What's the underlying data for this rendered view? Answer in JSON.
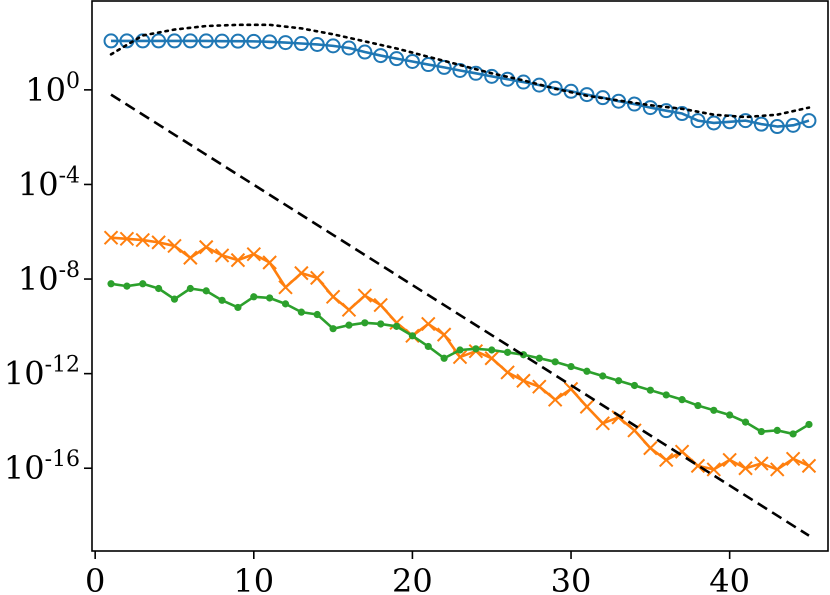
{
  "chart_data": {
    "type": "line",
    "title": "",
    "xlabel": "",
    "ylabel": "",
    "yscale": "log",
    "xlim": [
      -0.2,
      46.2
    ],
    "ylim_exponent": [
      -19.5,
      3.8
    ],
    "grid": false,
    "x_ticks": [
      0,
      10,
      20,
      30,
      40
    ],
    "y_ticks": [
      {
        "base": "10",
        "exp": "0",
        "value_exp": 0
      },
      {
        "base": "10",
        "exp": "-4",
        "value_exp": -4
      },
      {
        "base": "10",
        "exp": "-8",
        "value_exp": -8
      },
      {
        "base": "10",
        "exp": "-12",
        "value_exp": -12
      },
      {
        "base": "10",
        "exp": "-16",
        "value_exp": -16
      }
    ],
    "colors": {
      "blue": "#1f77b4",
      "orange": "#ff7f0e",
      "green": "#2ca02c",
      "black": "#000000"
    },
    "series": [
      {
        "color": "#1f77b4",
        "marker": "circle-open",
        "line": "solid",
        "x": [
          1,
          2,
          3,
          4,
          5,
          6,
          7,
          8,
          9,
          10,
          11,
          12,
          13,
          14,
          15,
          16,
          17,
          18,
          19,
          20,
          21,
          22,
          23,
          24,
          25,
          26,
          27,
          28,
          29,
          30,
          31,
          32,
          33,
          34,
          35,
          36,
          37,
          38,
          39,
          40,
          41,
          42,
          43,
          44,
          45
        ],
        "log10_y": [
          2.07,
          2.07,
          2.07,
          2.07,
          2.07,
          2.07,
          2.07,
          2.06,
          2.06,
          2.05,
          2.03,
          2.0,
          1.96,
          1.92,
          1.86,
          1.77,
          1.6,
          1.45,
          1.32,
          1.2,
          1.07,
          0.95,
          0.82,
          0.7,
          0.57,
          0.45,
          0.33,
          0.2,
          0.07,
          -0.06,
          -0.2,
          -0.33,
          -0.48,
          -0.6,
          -0.75,
          -0.88,
          -1.0,
          -1.3,
          -1.4,
          -1.35,
          -1.3,
          -1.45,
          -1.55,
          -1.5,
          -1.3
        ]
      },
      {
        "color": "#ff7f0e",
        "marker": "x",
        "line": "solid",
        "x": [
          1,
          2,
          3,
          4,
          5,
          6,
          7,
          8,
          9,
          10,
          11,
          12,
          13,
          14,
          15,
          16,
          17,
          18,
          19,
          20,
          21,
          22,
          23,
          24,
          25,
          26,
          27,
          28,
          29,
          30,
          31,
          32,
          33,
          34,
          35,
          36,
          37,
          38,
          39,
          40,
          41,
          42,
          43,
          44,
          45
        ],
        "log10_y": [
          -6.25,
          -6.3,
          -6.35,
          -6.45,
          -6.6,
          -7.1,
          -6.65,
          -7.0,
          -7.2,
          -6.95,
          -7.3,
          -8.35,
          -7.75,
          -7.95,
          -8.75,
          -9.3,
          -8.7,
          -9.1,
          -9.85,
          -10.4,
          -9.9,
          -10.35,
          -11.3,
          -11.05,
          -11.35,
          -11.95,
          -12.3,
          -12.55,
          -13.1,
          -12.65,
          -13.4,
          -14.1,
          -13.85,
          -14.4,
          -15.15,
          -15.65,
          -15.3,
          -15.9,
          -16.05,
          -15.65,
          -16.0,
          -15.8,
          -16.05,
          -15.6,
          -15.9
        ]
      },
      {
        "color": "#2ca02c",
        "marker": "dot",
        "line": "solid",
        "x": [
          1,
          2,
          3,
          4,
          5,
          6,
          7,
          8,
          9,
          10,
          11,
          12,
          13,
          14,
          15,
          16,
          17,
          18,
          19,
          20,
          21,
          22,
          23,
          24,
          25,
          26,
          27,
          28,
          29,
          30,
          31,
          32,
          33,
          34,
          35,
          36,
          37,
          38,
          39,
          40,
          41,
          42,
          43,
          44,
          45
        ],
        "log10_y": [
          -8.2,
          -8.3,
          -8.2,
          -8.4,
          -8.85,
          -8.4,
          -8.5,
          -8.9,
          -9.2,
          -8.75,
          -8.8,
          -9.05,
          -9.4,
          -9.5,
          -10.1,
          -9.95,
          -9.85,
          -9.9,
          -10.0,
          -10.4,
          -10.85,
          -11.35,
          -11.0,
          -10.95,
          -11.0,
          -11.1,
          -11.2,
          -11.35,
          -11.5,
          -11.7,
          -11.9,
          -12.1,
          -12.3,
          -12.5,
          -12.7,
          -12.9,
          -13.1,
          -13.35,
          -13.55,
          -13.75,
          -14.05,
          -14.45,
          -14.4,
          -14.55,
          -14.15
        ]
      },
      {
        "color": "#000000",
        "marker": "none",
        "line": "dotted",
        "x": [
          1,
          3,
          5,
          7,
          9,
          11,
          13,
          15,
          17,
          19,
          21,
          23,
          25,
          27,
          29,
          31,
          33,
          35,
          37,
          39,
          41,
          43,
          45
        ],
        "log10_y": [
          1.5,
          2.3,
          2.55,
          2.7,
          2.75,
          2.75,
          2.6,
          2.35,
          2.05,
          1.75,
          1.4,
          1.05,
          0.7,
          0.4,
          0.05,
          -0.25,
          -0.45,
          -0.65,
          -0.8,
          -1.05,
          -1.15,
          -1.05,
          -0.75
        ]
      },
      {
        "color": "#000000",
        "marker": "none",
        "line": "dashed",
        "x": [
          1,
          45
        ],
        "log10_y": [
          -0.2,
          -18.85
        ]
      }
    ]
  }
}
